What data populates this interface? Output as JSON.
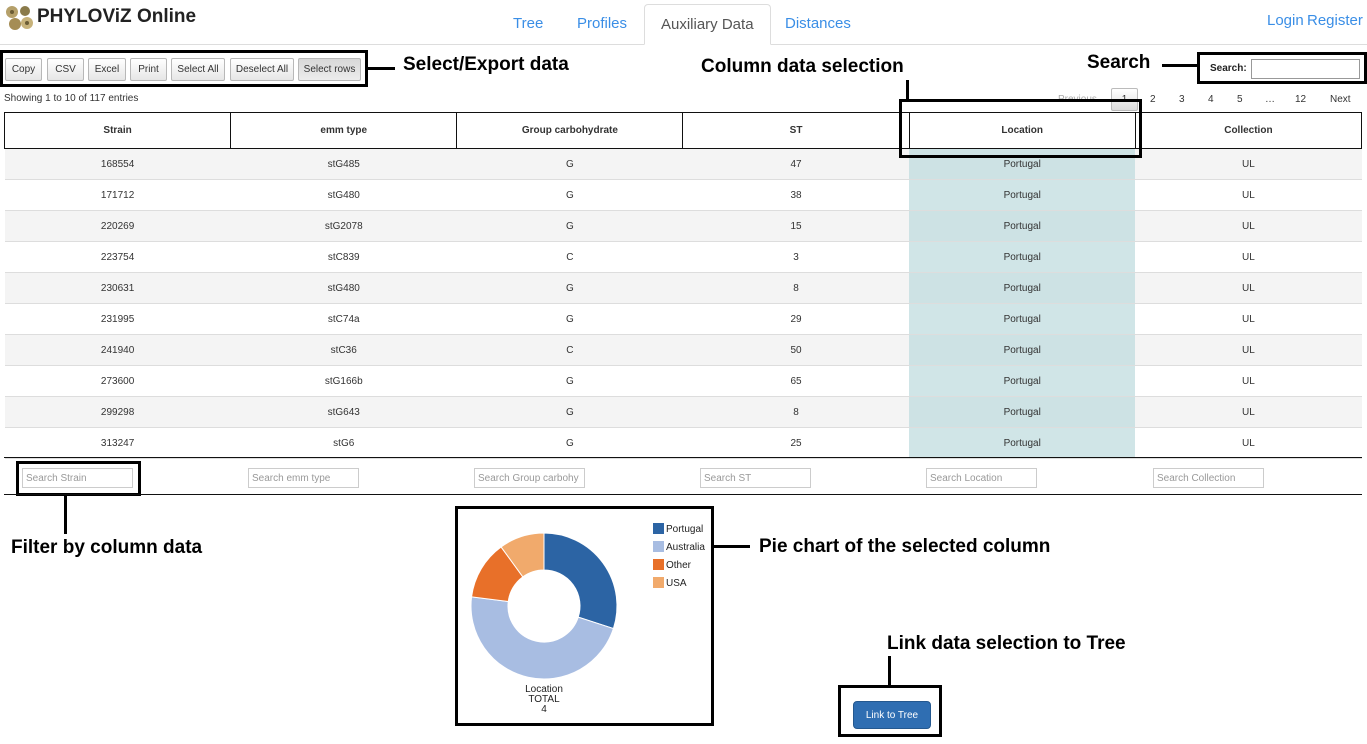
{
  "app": {
    "title": "PHYLOViZ Online"
  },
  "nav": {
    "tabs": [
      {
        "label": "Tree"
      },
      {
        "label": "Profiles"
      },
      {
        "label": "Auxiliary Data"
      },
      {
        "label": "Distances"
      }
    ],
    "active_tab": "Auxiliary Data",
    "login": "Login",
    "register": "Register"
  },
  "toolbar": {
    "buttons": [
      {
        "label": "Copy"
      },
      {
        "label": "CSV"
      },
      {
        "label": "Excel"
      },
      {
        "label": "Print"
      },
      {
        "label": "Select All"
      },
      {
        "label": "Deselect All"
      },
      {
        "label": "Select rows"
      }
    ]
  },
  "annotations": {
    "export": "Select/Export data",
    "column_selection": "Column data selection",
    "search": "Search",
    "filter": "Filter by column data",
    "pie": "Pie chart of the selected column",
    "link": "Link data selection to Tree"
  },
  "table": {
    "info": "Showing 1 to 10 of 117 entries",
    "search_label": "Search:",
    "search_value": "",
    "columns": [
      "Strain",
      "emm type",
      "Group carbohydrate",
      "ST",
      "Location",
      "Collection"
    ],
    "selected_column": "Location",
    "rows": [
      [
        "168554",
        "stG485",
        "G",
        "47",
        "Portugal",
        "UL"
      ],
      [
        "171712",
        "stG480",
        "G",
        "38",
        "Portugal",
        "UL"
      ],
      [
        "220269",
        "stG2078",
        "G",
        "15",
        "Portugal",
        "UL"
      ],
      [
        "223754",
        "stC839",
        "C",
        "3",
        "Portugal",
        "UL"
      ],
      [
        "230631",
        "stG480",
        "G",
        "8",
        "Portugal",
        "UL"
      ],
      [
        "231995",
        "stC74a",
        "G",
        "29",
        "Portugal",
        "UL"
      ],
      [
        "241940",
        "stC36",
        "C",
        "50",
        "Portugal",
        "UL"
      ],
      [
        "273600",
        "stG166b",
        "G",
        "65",
        "Portugal",
        "UL"
      ],
      [
        "299298",
        "stG643",
        "G",
        "8",
        "Portugal",
        "UL"
      ],
      [
        "313247",
        "stG6",
        "G",
        "25",
        "Portugal",
        "UL"
      ]
    ],
    "filters": [
      {
        "placeholder": "Search Strain"
      },
      {
        "placeholder": "Search emm type"
      },
      {
        "placeholder": "Search Group carbohy"
      },
      {
        "placeholder": "Search ST"
      },
      {
        "placeholder": "Search Location"
      },
      {
        "placeholder": "Search Collection"
      }
    ]
  },
  "pagination": {
    "previous": "Previous",
    "pages": [
      "1",
      "2",
      "3",
      "4",
      "5",
      "…",
      "12"
    ],
    "current": "1",
    "next": "Next"
  },
  "chart_data": {
    "type": "pie",
    "donut": true,
    "categories": [
      "Portugal",
      "Australia",
      "Other",
      "USA"
    ],
    "values": [
      30,
      47,
      13,
      10
    ],
    "value_unit": "percent (estimated)",
    "colors": [
      "#2c64a4",
      "#a8bde2",
      "#e87029",
      "#f1aa6c"
    ],
    "legend_position": "top-right",
    "center_label": [
      "Location",
      "TOTAL",
      "4"
    ]
  },
  "link_button": {
    "label": "Link to Tree"
  }
}
